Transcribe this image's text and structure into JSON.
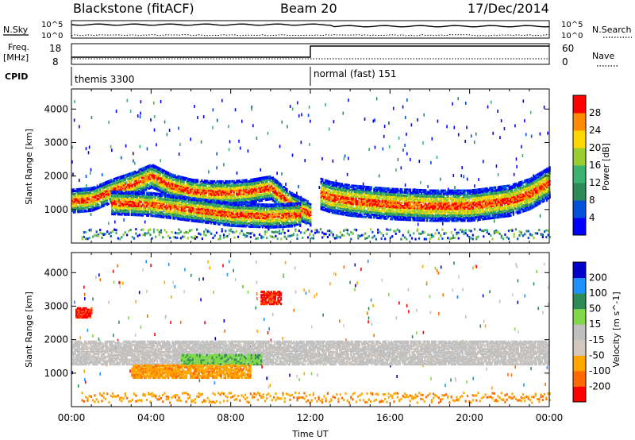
{
  "header": {
    "title": "Blackstone (fitACF)",
    "beam": "Beam 20",
    "date": "17/Dec/2014"
  },
  "status_panels": {
    "nsky_label": "N.Sky",
    "nsearch_label": "N.Search",
    "count_scale_top": "10^5",
    "count_scale_bottom": "10^0",
    "freq_label": "Freq.",
    "freq_unit": "[MHz]",
    "freq_ticks": [
      "18",
      "8"
    ],
    "nave_label": "Nave",
    "nave_ticks": [
      "60",
      "0"
    ],
    "cpid_label": "CPID",
    "modes": [
      {
        "name": "themis 3300",
        "start_hour": 0
      },
      {
        "name": "normal (fast) 151",
        "start_hour": 12
      }
    ]
  },
  "chart_data": [
    {
      "type": "heatmap",
      "panel": "power",
      "xlabel": "",
      "ylabel": "Slant Range [km]",
      "xlim": [
        0,
        24
      ],
      "ylim": [
        0,
        4600
      ],
      "yticks": [
        1000,
        2000,
        3000,
        4000
      ],
      "colorbar": {
        "label": "Power [dB]",
        "ticks": [
          4,
          8,
          12,
          16,
          20,
          24,
          28
        ],
        "range": [
          0,
          32
        ],
        "colors": [
          "#0000ff",
          "#0050d8",
          "#2e8b57",
          "#3cb371",
          "#9acd32",
          "#ffd700",
          "#ff8c00",
          "#ff0000"
        ]
      },
      "bands": [
        {
          "hours": [
            0,
            1,
            2,
            3,
            4,
            5,
            6,
            7,
            8,
            9,
            10,
            11,
            12
          ],
          "range_km": [
            1300,
            1350,
            1600,
            1800,
            2050,
            1750,
            1600,
            1550,
            1550,
            1600,
            1700,
            1200,
            900
          ],
          "power_db": 20
        },
        {
          "hours": [
            2,
            4,
            6,
            8,
            10,
            11.5
          ],
          "range_km": [
            1250,
            1200,
            1050,
            900,
            850,
            900
          ],
          "power_db": 16
        },
        {
          "hours": [
            12.5,
            13,
            14,
            16,
            18,
            20,
            22,
            23,
            24
          ],
          "range_km": [
            1500,
            1400,
            1300,
            1200,
            1150,
            1150,
            1300,
            1500,
            1850
          ],
          "power_db": 22
        }
      ]
    },
    {
      "type": "heatmap",
      "panel": "velocity",
      "xlabel": "Time UT",
      "ylabel": "Slant Range [km]",
      "xlim": [
        0,
        24
      ],
      "ylim": [
        0,
        4600
      ],
      "yticks": [
        1000,
        2000,
        3000,
        4000
      ],
      "xticks": [
        "00:00",
        "04:00",
        "08:00",
        "12:00",
        "16:00",
        "20:00",
        "00:00"
      ],
      "xtick_hours": [
        0,
        4,
        8,
        12,
        16,
        20,
        24
      ],
      "colorbar": {
        "label": "Velocity [m s^-1]",
        "ticks": [
          -200,
          -100,
          -50,
          -15,
          15,
          50,
          100,
          200
        ],
        "colors": [
          "#ff0000",
          "#ff6a00",
          "#ffa500",
          "#d2c8be",
          "#c0c0c0",
          "#7fd94a",
          "#2e8b57",
          "#1e90ff",
          "#0000cd"
        ]
      },
      "regions": [
        {
          "hours": [
            0.2,
            1.0
          ],
          "range_km": [
            2700,
            3000
          ],
          "velocity": -200
        },
        {
          "hours": [
            0,
            24
          ],
          "range_km": [
            1300,
            2000
          ],
          "velocity": 0
        },
        {
          "hours": [
            5.5,
            9.5
          ],
          "range_km": [
            1300,
            1600
          ],
          "velocity": 50
        },
        {
          "hours": [
            3,
            9
          ],
          "range_km": [
            900,
            1300
          ],
          "velocity": -50
        },
        {
          "hours": [
            9.5,
            10.5
          ],
          "range_km": [
            3100,
            3500
          ],
          "velocity": -200
        }
      ]
    }
  ]
}
